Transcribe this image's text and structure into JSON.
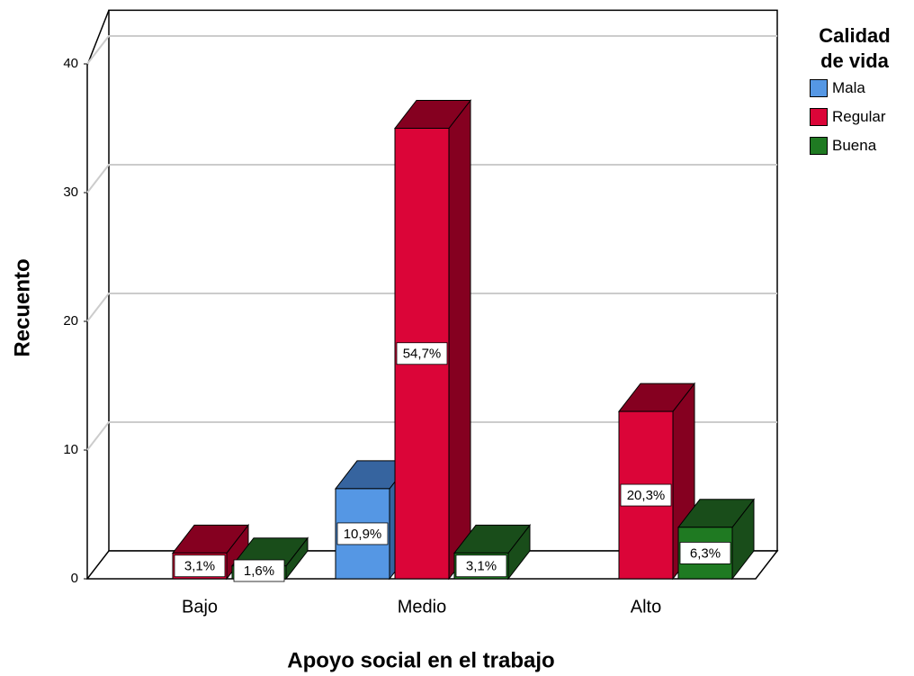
{
  "chart_data": {
    "type": "bar3d",
    "x_label": "Apoyo social en el trabajo",
    "y_label": "Recuento",
    "categories": [
      "Bajo",
      "Medio",
      "Alto"
    ],
    "legend_title": "Calidad de vida",
    "series": [
      {
        "name": "Mala",
        "color": "#5597e4",
        "side_color": "#36649f",
        "values": [
          null,
          7,
          null
        ],
        "percent_labels": [
          null,
          "10,9%",
          null
        ]
      },
      {
        "name": "Regular",
        "color": "#db0538",
        "side_color": "#850020",
        "values": [
          2,
          35,
          13
        ],
        "percent_labels": [
          "3,1%",
          "54,7%",
          "20,3%"
        ]
      },
      {
        "name": "Buena",
        "color": "#1f7a22",
        "side_color": "#194d1a",
        "values": [
          1,
          2,
          4
        ],
        "percent_labels": [
          "1,6%",
          "3,1%",
          "6,3%"
        ]
      }
    ],
    "ylim": [
      0,
      42
    ],
    "yticks": [
      0,
      10,
      20,
      30,
      40
    ],
    "grid": true
  }
}
